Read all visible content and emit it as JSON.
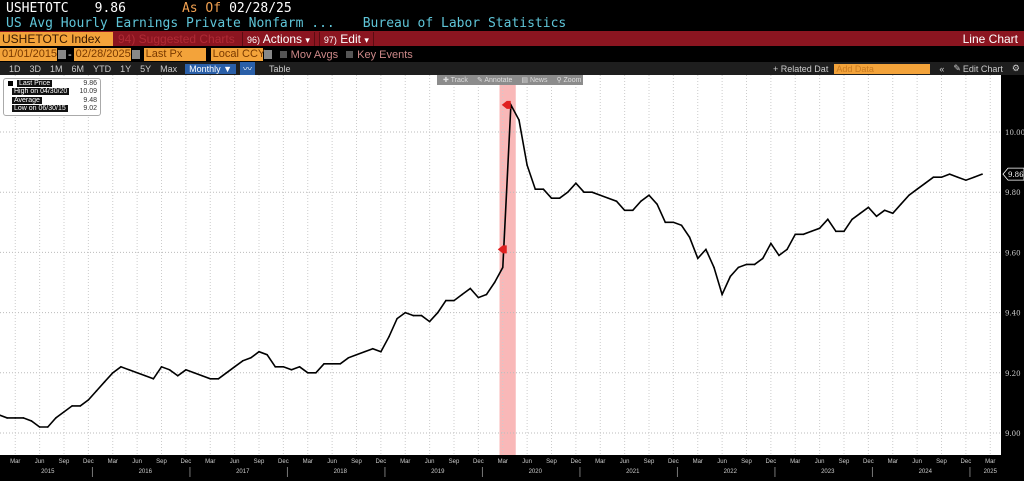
{
  "header": {
    "ticker": "USHETOTC",
    "last": "9.86",
    "as_of_label": "As Of",
    "as_of_date": "02/28/25",
    "description": "US Avg Hourly Earnings Private Nonfarm ...",
    "source": "Bureau of Labor Statistics"
  },
  "toolbar": {
    "security": "USHETOTC Index",
    "suggested": "94) Suggested Charts",
    "actions_num": "96)",
    "actions": "Actions",
    "edit_num": "97)",
    "edit": "Edit",
    "chart_type": "Line Chart"
  },
  "range": {
    "start": "01/01/2015",
    "end": "02/28/2025",
    "field": "Last Px",
    "currency": "Local CCY",
    "mov_avgs": "Mov Avgs",
    "key_events": "Key Events"
  },
  "periods": [
    "1D",
    "3D",
    "1M",
    "6M",
    "YTD",
    "1Y",
    "5Y",
    "Max"
  ],
  "frequency": "Monthly ▼",
  "table_label": "Table",
  "related": "+ Related Dat",
  "add_data": "Add Data",
  "edit_chart": "Edit Chart",
  "annot_tools": [
    "✚ Track",
    "✎ Annotate",
    "▤ News",
    "⚲ Zoom"
  ],
  "legend": [
    {
      "label": "Last Price",
      "value": "9.86"
    },
    {
      "label": "High on 04/30/20",
      "value": "10.09"
    },
    {
      "label": "Average",
      "value": "9.48"
    },
    {
      "label": "Low on 06/30/15",
      "value": "9.02"
    }
  ],
  "colors": {
    "line": "#000000",
    "highlight": "#f7a6a6",
    "marker": "#e02020",
    "header_bar": "#8b1520",
    "orange": "#f3a33a"
  },
  "chart_data": {
    "type": "line",
    "title": "US Avg Hourly Earnings Private Nonfarm",
    "start": "2015-01",
    "frequency": "monthly",
    "ylim": [
      8.95,
      10.13
    ],
    "yticks": [
      "9.00",
      "9.20",
      "9.40",
      "9.60",
      "9.80",
      "10.00"
    ],
    "last_value_label": "9.86",
    "highlight_period": [
      "2020-03",
      "2020-04"
    ],
    "xticks_months": [
      "Mar",
      "Jun",
      "Sep",
      "Dec"
    ],
    "xticks_years": [
      "2015",
      "2016",
      "2017",
      "2018",
      "2019",
      "2020",
      "2021",
      "2022",
      "2023",
      "2024",
      "2025"
    ],
    "values": [
      9.06,
      9.05,
      9.05,
      9.05,
      9.04,
      9.02,
      9.02,
      9.05,
      9.07,
      9.09,
      9.09,
      9.11,
      9.14,
      9.17,
      9.2,
      9.22,
      9.21,
      9.2,
      9.19,
      9.18,
      9.22,
      9.21,
      9.19,
      9.21,
      9.2,
      9.19,
      9.18,
      9.18,
      9.2,
      9.22,
      9.24,
      9.25,
      9.27,
      9.26,
      9.22,
      9.22,
      9.21,
      9.22,
      9.2,
      9.2,
      9.23,
      9.23,
      9.23,
      9.25,
      9.26,
      9.27,
      9.28,
      9.27,
      9.32,
      9.38,
      9.4,
      9.39,
      9.39,
      9.37,
      9.4,
      9.44,
      9.44,
      9.46,
      9.48,
      9.45,
      9.46,
      9.5,
      9.55,
      10.09,
      10.04,
      9.89,
      9.81,
      9.81,
      9.78,
      9.78,
      9.8,
      9.83,
      9.8,
      9.8,
      9.79,
      9.78,
      9.77,
      9.74,
      9.74,
      9.77,
      9.79,
      9.76,
      9.7,
      9.7,
      9.69,
      9.65,
      9.58,
      9.61,
      9.55,
      9.46,
      9.52,
      9.55,
      9.56,
      9.56,
      9.58,
      9.63,
      9.59,
      9.61,
      9.66,
      9.66,
      9.67,
      9.68,
      9.71,
      9.67,
      9.67,
      9.71,
      9.73,
      9.75,
      9.72,
      9.74,
      9.73,
      9.76,
      9.79,
      9.81,
      9.83,
      9.85,
      9.85,
      9.86,
      9.85,
      9.84,
      9.85,
      9.86
    ]
  }
}
